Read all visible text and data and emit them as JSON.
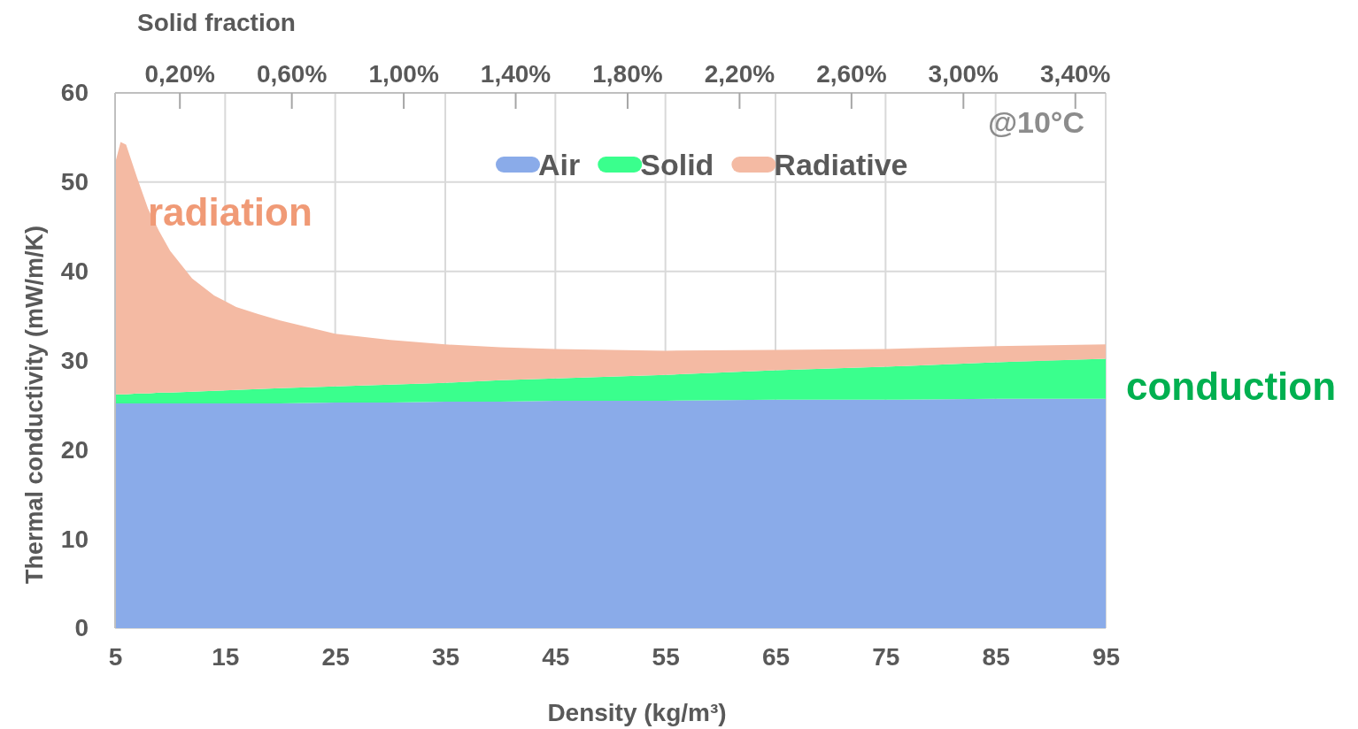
{
  "chart_data": {
    "type": "area",
    "stacked": true,
    "xlabel": "Density (kg/m³)",
    "ylabel": "Thermal conductivity (mW/m/K)",
    "x2label": "Solid fraction",
    "x": [
      5,
      5.5,
      6,
      7,
      8,
      9,
      10,
      12,
      14,
      16,
      18,
      20,
      25,
      30,
      35,
      40,
      45,
      55,
      65,
      75,
      85,
      95
    ],
    "series": [
      {
        "name": "Air",
        "color": "#8aabe9",
        "values": [
          25.2,
          25.2,
          25.2,
          25.2,
          25.2,
          25.2,
          25.2,
          25.2,
          25.2,
          25.2,
          25.2,
          25.2,
          25.3,
          25.3,
          25.4,
          25.4,
          25.5,
          25.5,
          25.6,
          25.6,
          25.7,
          25.7
        ]
      },
      {
        "name": "Solid",
        "color": "#3aff8d",
        "values": [
          1.0,
          1.0,
          1.0,
          1.1,
          1.1,
          1.2,
          1.2,
          1.3,
          1.4,
          1.5,
          1.6,
          1.7,
          1.8,
          2.0,
          2.1,
          2.4,
          2.5,
          2.9,
          3.3,
          3.7,
          4.1,
          4.5
        ]
      },
      {
        "name": "Radiative",
        "color": "#f4baa3",
        "values": [
          25.9,
          28.3,
          28.0,
          24.2,
          20.7,
          18.1,
          15.9,
          12.7,
          10.7,
          9.3,
          8.4,
          7.6,
          5.9,
          5.0,
          4.3,
          3.7,
          3.3,
          2.7,
          2.3,
          2.0,
          1.8,
          1.6
        ]
      }
    ],
    "xlim": [
      5,
      95
    ],
    "xticks": [
      5,
      15,
      25,
      35,
      45,
      55,
      65,
      75,
      85,
      95
    ],
    "ylim": [
      0,
      60
    ],
    "yticks": [
      0,
      10,
      20,
      30,
      40,
      50,
      60
    ],
    "x2lim": [
      -0.03,
      3.51
    ],
    "x2ticks": [
      {
        "value": 0.2,
        "label": "0,20%"
      },
      {
        "value": 0.6,
        "label": "0,60%"
      },
      {
        "value": 1.0,
        "label": "1,00%"
      },
      {
        "value": 1.4,
        "label": "1,40%"
      },
      {
        "value": 1.8,
        "label": "1,80%"
      },
      {
        "value": 2.2,
        "label": "2,20%"
      },
      {
        "value": 2.6,
        "label": "2,60%"
      },
      {
        "value": 3.0,
        "label": "3,00%"
      },
      {
        "value": 3.4,
        "label": "3,40%"
      }
    ],
    "grid": true,
    "legend": "top",
    "annotations": [
      "@10°C",
      "radiation",
      "conduction"
    ]
  }
}
